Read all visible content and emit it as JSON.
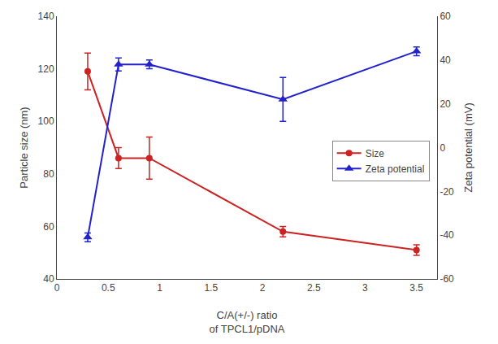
{
  "chart_data": {
    "type": "line",
    "x": [
      0.3,
      0.6,
      0.9,
      2.2,
      3.5
    ],
    "xlabel": "C/A(+/-) ratio\nof TPCL1/pDNA",
    "ylabel": "Particle size (nm)",
    "y2label": "Zeta potential (mV)",
    "xlim": [
      0.0,
      3.7
    ],
    "xticks": [
      0.0,
      0.5,
      1.0,
      1.5,
      2.0,
      2.5,
      3.0,
      3.5
    ],
    "ylim": [
      40,
      140
    ],
    "yticks": [
      40,
      60,
      80,
      100,
      120,
      140
    ],
    "y2lim": [
      -60,
      60
    ],
    "y2ticks": [
      -60,
      -40,
      -20,
      0,
      20,
      40,
      60
    ],
    "grid": false,
    "legend": "center right",
    "series": [
      {
        "name": "Size",
        "color": "#cc2222",
        "marker": "circle",
        "line_style": "solid",
        "values": [
          119,
          86,
          86,
          58,
          51
        ],
        "yerr": [
          7,
          4,
          8,
          2,
          2
        ]
      },
      {
        "name": "Zeta potential",
        "color": "#2222cc",
        "marker": "triangle-up",
        "line_style": "solid",
        "axis": "y2",
        "values": [
          -41,
          38,
          38,
          22,
          44
        ],
        "yerr": [
          2,
          3,
          2,
          10,
          2
        ]
      }
    ]
  }
}
